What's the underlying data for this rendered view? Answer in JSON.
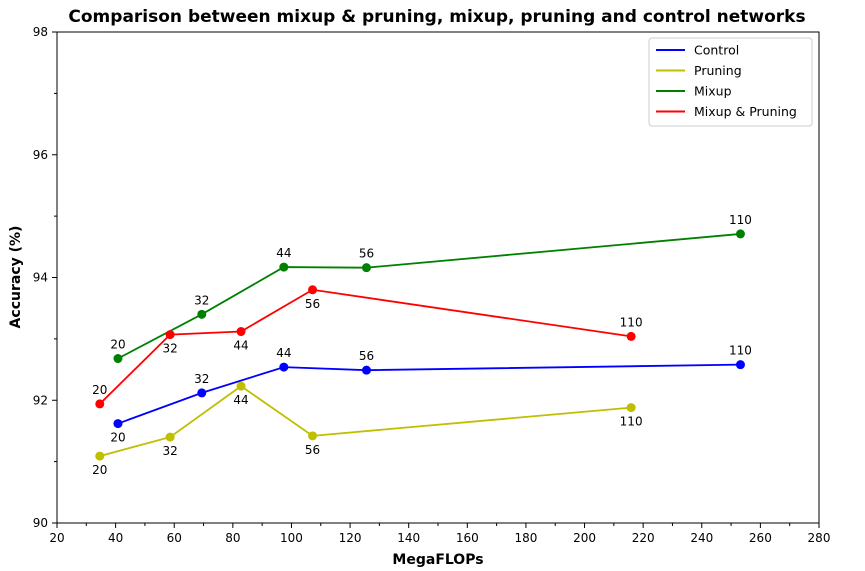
{
  "chart_data": {
    "type": "line",
    "title": "Comparison between mixup & pruning, mixup, pruning and control networks",
    "xlabel": "MegaFLOPs",
    "ylabel": "Accuracy (%)",
    "xlim": [
      20,
      280
    ],
    "ylim": [
      90,
      98
    ],
    "xticks": [
      20,
      40,
      60,
      80,
      100,
      120,
      140,
      160,
      180,
      200,
      220,
      240,
      260,
      280
    ],
    "yticks": [
      90,
      92,
      94,
      96,
      98
    ],
    "grid": false,
    "legend_position": "top-right",
    "series": [
      {
        "name": "Control",
        "color": "#0000ff",
        "points": [
          {
            "x": 40.8,
            "y": 91.62,
            "label": "20",
            "label_pos": "below"
          },
          {
            "x": 69.4,
            "y": 92.12,
            "label": "32",
            "label_pos": "above"
          },
          {
            "x": 97.4,
            "y": 92.54,
            "label": "44",
            "label_pos": "above"
          },
          {
            "x": 125.6,
            "y": 92.49,
            "label": "56",
            "label_pos": "above"
          },
          {
            "x": 253.2,
            "y": 92.58,
            "label": "110",
            "label_pos": "above"
          }
        ]
      },
      {
        "name": "Pruning",
        "color": "#bfbf00",
        "points": [
          {
            "x": 34.6,
            "y": 91.09,
            "label": "20",
            "label_pos": "below"
          },
          {
            "x": 58.6,
            "y": 91.4,
            "label": "32",
            "label_pos": "below"
          },
          {
            "x": 82.8,
            "y": 92.23,
            "label": "44",
            "label_pos": "below"
          },
          {
            "x": 107.2,
            "y": 91.42,
            "label": "56",
            "label_pos": "below"
          },
          {
            "x": 215.9,
            "y": 91.88,
            "label": "110",
            "label_pos": "below"
          }
        ]
      },
      {
        "name": "Mixup",
        "color": "#008000",
        "points": [
          {
            "x": 40.8,
            "y": 92.68,
            "label": "20",
            "label_pos": "above"
          },
          {
            "x": 69.4,
            "y": 93.4,
            "label": "32",
            "label_pos": "above"
          },
          {
            "x": 97.4,
            "y": 94.17,
            "label": "44",
            "label_pos": "above"
          },
          {
            "x": 125.6,
            "y": 94.16,
            "label": "56",
            "label_pos": "above"
          },
          {
            "x": 253.2,
            "y": 94.71,
            "label": "110",
            "label_pos": "above"
          }
        ]
      },
      {
        "name": "Mixup & Pruning",
        "color": "#ff0000",
        "points": [
          {
            "x": 34.6,
            "y": 91.94,
            "label": "20",
            "label_pos": "above"
          },
          {
            "x": 58.6,
            "y": 93.07,
            "label": "32",
            "label_pos": "below"
          },
          {
            "x": 82.8,
            "y": 93.12,
            "label": "44",
            "label_pos": "below"
          },
          {
            "x": 107.2,
            "y": 93.8,
            "label": "56",
            "label_pos": "below"
          },
          {
            "x": 215.9,
            "y": 93.04,
            "label": "110",
            "label_pos": "above"
          }
        ]
      }
    ]
  }
}
